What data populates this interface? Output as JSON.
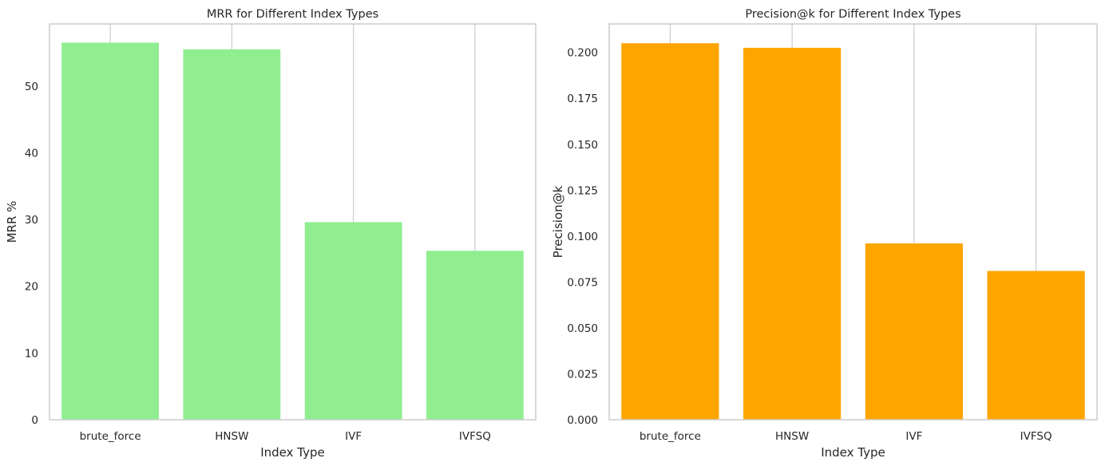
{
  "chart_data": [
    {
      "type": "bar",
      "title": "MRR for Different Index Types",
      "xlabel": "Index Type",
      "ylabel": "MRR %",
      "categories": [
        "brute_force",
        "HNSW",
        "IVF",
        "IVFSQ"
      ],
      "values": [
        56.5,
        55.5,
        29.6,
        25.3
      ],
      "ylim": [
        0,
        59.3
      ],
      "yticks": [
        0,
        10,
        20,
        30,
        40,
        50
      ],
      "ytick_labels": [
        "0",
        "10",
        "20",
        "30",
        "40",
        "50"
      ],
      "bar_color": "#90ee90",
      "grid": "vertical gridlines only, light gray"
    },
    {
      "type": "bar",
      "title": "Precision@k for Different Index Types",
      "xlabel": "Index Type",
      "ylabel": "Precision@k",
      "categories": [
        "brute_force",
        "HNSW",
        "IVF",
        "IVFSQ"
      ],
      "values": [
        0.205,
        0.2025,
        0.096,
        0.081
      ],
      "ylim": [
        0,
        0.2155
      ],
      "yticks": [
        0,
        0.025,
        0.05,
        0.075,
        0.1,
        0.125,
        0.15,
        0.175,
        0.2
      ],
      "ytick_labels": [
        "0.000",
        "0.025",
        "0.050",
        "0.075",
        "0.100",
        "0.125",
        "0.150",
        "0.175",
        "0.200"
      ],
      "bar_color": "#ffa500",
      "grid": "vertical gridlines only, light gray"
    }
  ]
}
